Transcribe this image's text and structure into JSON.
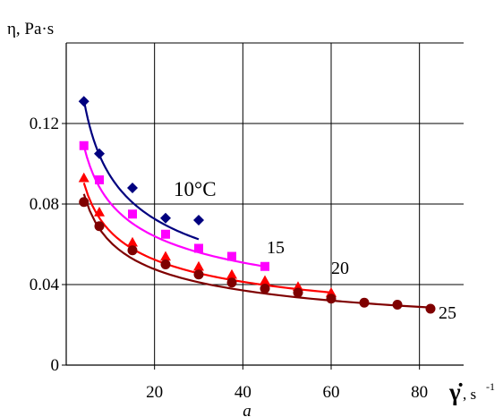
{
  "chart_data": {
    "type": "scatter",
    "ylabel": "η, Pa·s",
    "xlabel_symbol": "γ̇",
    "xlabel_unit": ", s",
    "xlabel_unit_sup": "-1",
    "panel_label": "a",
    "xlim": [
      0,
      90
    ],
    "ylim": [
      0,
      0.16
    ],
    "x_ticks": [
      20,
      40,
      60,
      80
    ],
    "y_ticks": [
      {
        "value": 0,
        "label": "0"
      },
      {
        "value": 0.04,
        "label": "0.04"
      },
      {
        "value": 0.08,
        "label": "0.08"
      },
      {
        "value": 0.12,
        "label": "0.12"
      }
    ],
    "grid": true,
    "series": [
      {
        "name": "10°C",
        "color": "#00007f",
        "marker": "diamond",
        "x": [
          4,
          7.5,
          15,
          22.5,
          30
        ],
        "y": [
          0.131,
          0.105,
          0.088,
          0.073,
          0.072
        ],
        "fit_x": [
          4,
          30
        ],
        "fit_a": 0.22,
        "fit_b": 0.37
      },
      {
        "name": "15",
        "color": "#ff00ff",
        "marker": "square",
        "x": [
          4,
          7.5,
          15,
          22.5,
          30,
          37.5,
          45
        ],
        "y": [
          0.109,
          0.092,
          0.075,
          0.065,
          0.058,
          0.054,
          0.049
        ],
        "fit_x": [
          4,
          45
        ],
        "fit_a": 0.172,
        "fit_b": 0.33
      },
      {
        "name": "20",
        "color": "#ff0000",
        "marker": "triangle",
        "x": [
          4,
          7.5,
          15,
          22.5,
          30,
          37.5,
          45,
          52.5,
          60
        ],
        "y": [
          0.093,
          0.076,
          0.061,
          0.054,
          0.049,
          0.045,
          0.042,
          0.039,
          0.036
        ],
        "fit_x": [
          4,
          60
        ],
        "fit_a": 0.145,
        "fit_b": 0.34
      },
      {
        "name": "25",
        "color": "#7f0000",
        "marker": "circle",
        "x": [
          4,
          7.5,
          15,
          22.5,
          30,
          37.5,
          45,
          52.5,
          60,
          67.5,
          75,
          82.5
        ],
        "y": [
          0.081,
          0.069,
          0.057,
          0.05,
          0.045,
          0.041,
          0.038,
          0.036,
          0.033,
          0.031,
          0.03,
          0.028
        ],
        "fit_x": [
          4,
          82
        ],
        "fit_a": 0.14,
        "fit_b": 0.36
      }
    ]
  }
}
